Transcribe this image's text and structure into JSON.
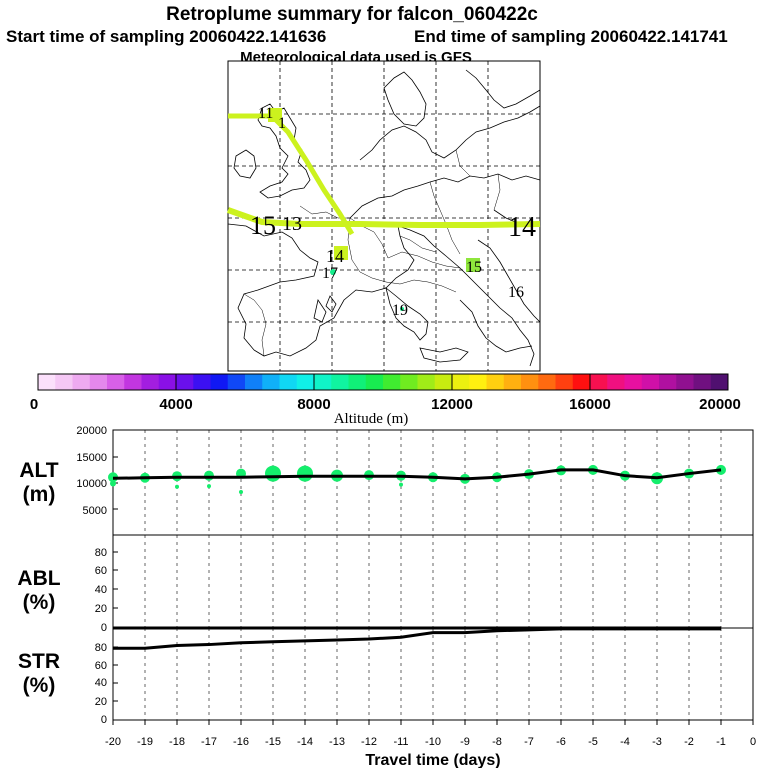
{
  "title": "Retroplume summary for falcon_060422c",
  "start_label": "Start time of sampling 20060422.141636",
  "end_label": "End time of sampling 20060422.141741",
  "met_label": "Meteorological data used is GFS",
  "colorbar": {
    "ticks": [
      "0",
      "4000",
      "8000",
      "12000",
      "16000",
      "20000"
    ],
    "label": "Altitude (m)",
    "colors": [
      "#fbe0fb",
      "#f5c8f5",
      "#eeaaf0",
      "#e488ec",
      "#d860e8",
      "#c236e0",
      "#a31ee0",
      "#8a10e6",
      "#6a10ec",
      "#3c10f2",
      "#1018f4",
      "#1048f6",
      "#1080f8",
      "#10b0f8",
      "#10d8f4",
      "#10f0e8",
      "#10f4c8",
      "#10f4a0",
      "#10f078",
      "#18ec50",
      "#40ec30",
      "#70ec20",
      "#a0ec18",
      "#c8ec10",
      "#ecf010",
      "#fff010",
      "#ffd010",
      "#ffb010",
      "#ff9010",
      "#ff6a10",
      "#ff4010",
      "#ff1010",
      "#f81050",
      "#f01080",
      "#e810a0",
      "#d010a8",
      "#b010a0",
      "#901090",
      "#701080",
      "#501070"
    ]
  },
  "map": {
    "plume_color": "#ccf21e",
    "labels": [
      {
        "text": "11",
        "size": "small"
      },
      {
        "text": "1",
        "size": "small"
      },
      {
        "text": "15",
        "size": "large"
      },
      {
        "text": "13",
        "size": "small"
      },
      {
        "text": "14",
        "size": "large"
      },
      {
        "text": "14",
        "size": "small"
      },
      {
        "text": "17",
        "size": "small"
      },
      {
        "text": "15",
        "size": "small"
      },
      {
        "text": "16",
        "size": "small"
      },
      {
        "text": "19",
        "size": "small"
      }
    ]
  },
  "panels": {
    "alt_label": [
      "ALT",
      "(m)"
    ],
    "abl_label": [
      "ABL",
      "(%)"
    ],
    "str_label": [
      "STR",
      "(%)"
    ],
    "alt_ticks": [
      "20000",
      "15000",
      "10000",
      "5000"
    ],
    "pct_ticks": [
      "80",
      "60",
      "40",
      "20",
      "0"
    ],
    "abl_top_tick": "0"
  },
  "chart_data": {
    "type": "line",
    "title": "Retroplume summary for falcon_060422c",
    "xlabel": "Travel time (days)",
    "xlim": [
      -20,
      0
    ],
    "x_ticks": [
      "-20",
      "-19",
      "-18",
      "-17",
      "-16",
      "-15",
      "-14",
      "-13",
      "-12",
      "-11",
      "-10",
      "-9",
      "-8",
      "-7",
      "-6",
      "-5",
      "-4",
      "-3",
      "-2",
      "-1",
      "0"
    ],
    "series": [
      {
        "name": "ALT (m)",
        "ylim": [
          0,
          20000
        ],
        "x": [
          -20,
          -19,
          -18,
          -17,
          -16,
          -15,
          -14,
          -13,
          -12,
          -11,
          -10,
          -9,
          -8,
          -7,
          -6,
          -5,
          -4,
          -3,
          -2,
          -1
        ],
        "values": [
          10800,
          10900,
          11000,
          11000,
          11000,
          11100,
          11200,
          11200,
          11200,
          11200,
          11000,
          10700,
          11000,
          11600,
          12400,
          12400,
          11300,
          10900,
          11700,
          12400
        ]
      },
      {
        "name": "ABL (%)",
        "ylim": [
          0,
          100
        ],
        "x": [
          -20,
          -19,
          -18,
          -17,
          -16,
          -15,
          -14,
          -13,
          -12,
          -11,
          -10,
          -9,
          -8,
          -7,
          -6,
          -5,
          -4,
          -3,
          -2,
          -1
        ],
        "values": [
          0,
          0,
          0,
          0,
          0,
          0,
          0,
          0,
          0,
          0,
          0,
          0,
          0,
          0,
          0,
          0,
          0,
          0,
          0,
          0
        ]
      },
      {
        "name": "STR (%)",
        "ylim": [
          0,
          100
        ],
        "x": [
          -20,
          -19,
          -18,
          -17,
          -16,
          -15,
          -14,
          -13,
          -12,
          -11,
          -10,
          -9,
          -8,
          -7,
          -6,
          -5,
          -4,
          -3,
          -2,
          -1
        ],
        "values": [
          78,
          78,
          81,
          82,
          84,
          85,
          86,
          87,
          88,
          90,
          95,
          95,
          97,
          98,
          99,
          99,
          99,
          99,
          99,
          99
        ]
      }
    ],
    "alt_markers": [
      {
        "x": -20,
        "y": 11000,
        "r": 5
      },
      {
        "x": -19,
        "y": 10900,
        "r": 5
      },
      {
        "x": -18,
        "y": 11200,
        "r": 5
      },
      {
        "x": -17,
        "y": 11300,
        "r": 5
      },
      {
        "x": -16,
        "y": 11700,
        "r": 5
      },
      {
        "x": -15,
        "y": 11700,
        "r": 8
      },
      {
        "x": -14,
        "y": 11700,
        "r": 8
      },
      {
        "x": -13,
        "y": 11300,
        "r": 6
      },
      {
        "x": -12,
        "y": 11400,
        "r": 5
      },
      {
        "x": -11,
        "y": 11300,
        "r": 5
      },
      {
        "x": -10,
        "y": 11000,
        "r": 5
      },
      {
        "x": -9,
        "y": 10700,
        "r": 5
      },
      {
        "x": -8,
        "y": 11000,
        "r": 5
      },
      {
        "x": -7,
        "y": 11600,
        "r": 5
      },
      {
        "x": -6,
        "y": 12300,
        "r": 5
      },
      {
        "x": -5,
        "y": 12400,
        "r": 5
      },
      {
        "x": -4,
        "y": 11300,
        "r": 5
      },
      {
        "x": -3,
        "y": 10800,
        "r": 6
      },
      {
        "x": -2,
        "y": 11700,
        "r": 5
      },
      {
        "x": -1,
        "y": 12400,
        "r": 5
      },
      {
        "x": -20,
        "y": 9800,
        "r": 3
      },
      {
        "x": -18,
        "y": 9200,
        "r": 2
      },
      {
        "x": -17,
        "y": 9300,
        "r": 2
      },
      {
        "x": -16,
        "y": 8200,
        "r": 2
      },
      {
        "x": -11,
        "y": 9600,
        "r": 2
      }
    ],
    "marker_color": "#14ee6c"
  }
}
